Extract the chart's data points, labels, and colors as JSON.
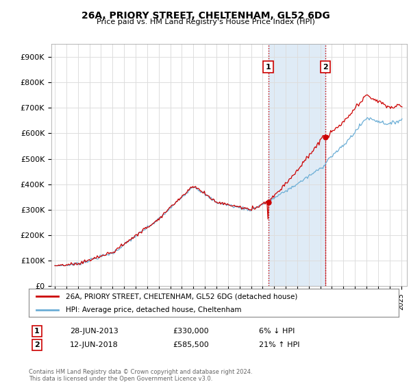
{
  "title": "26A, PRIORY STREET, CHELTENHAM, GL52 6DG",
  "subtitle": "Price paid vs. HM Land Registry's House Price Index (HPI)",
  "ylim": [
    0,
    950000
  ],
  "yticks": [
    0,
    100000,
    200000,
    300000,
    400000,
    500000,
    600000,
    700000,
    800000,
    900000
  ],
  "ytick_labels": [
    "£0",
    "£100K",
    "£200K",
    "£300K",
    "£400K",
    "£500K",
    "£600K",
    "£700K",
    "£800K",
    "£900K"
  ],
  "sale1_date": 2013.49,
  "sale1_price": 330000,
  "sale1_label": "1",
  "sale2_date": 2018.45,
  "sale2_price": 585500,
  "sale2_label": "2",
  "hpi_color": "#6baed6",
  "price_color": "#cc0000",
  "marker_color": "#cc0000",
  "vline_color": "#cc0000",
  "shade_color": "#c6dbef",
  "legend_line1": "26A, PRIORY STREET, CHELTENHAM, GL52 6DG (detached house)",
  "legend_line2": "HPI: Average price, detached house, Cheltenham",
  "table_row1_num": "1",
  "table_row1_date": "28-JUN-2013",
  "table_row1_price": "£330,000",
  "table_row1_hpi": "6% ↓ HPI",
  "table_row2_num": "2",
  "table_row2_date": "12-JUN-2018",
  "table_row2_price": "£585,500",
  "table_row2_hpi": "21% ↑ HPI",
  "footer": "Contains HM Land Registry data © Crown copyright and database right 2024.\nThis data is licensed under the Open Government Licence v3.0.",
  "background_color": "#ffffff",
  "xlim_left": 1994.7,
  "xlim_right": 2025.5
}
